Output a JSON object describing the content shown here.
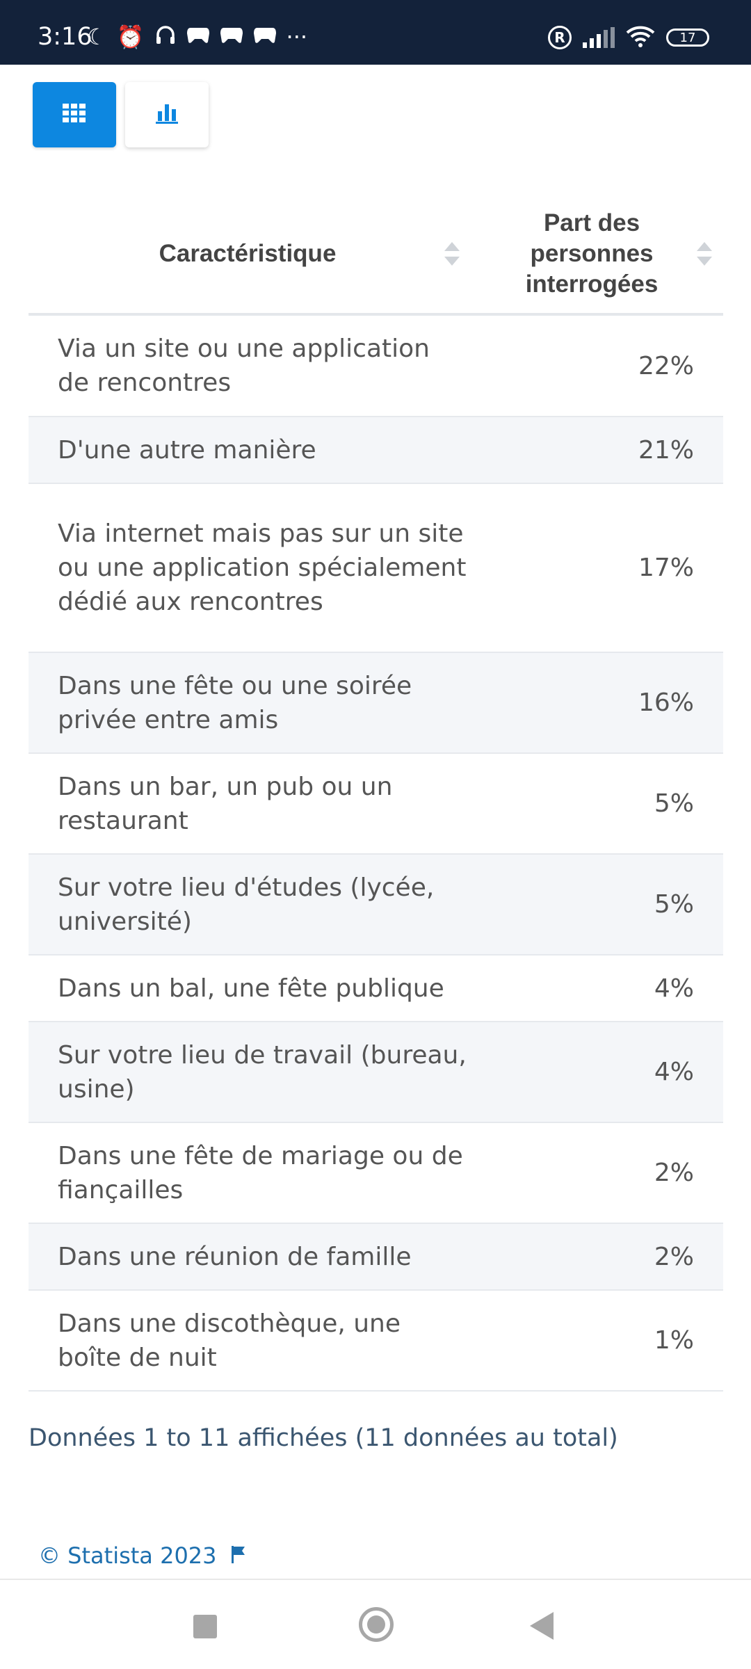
{
  "status_bar": {
    "time": "3:16",
    "more": "···",
    "battery": "17",
    "icons": [
      "moon-icon",
      "alarm-icon",
      "headphones-icon",
      "game-icon",
      "game-icon",
      "game-icon",
      "registered-icon",
      "signal-icon",
      "wifi-icon",
      "battery-icon"
    ]
  },
  "toolbar": {
    "table_view_icon": "grid-icon",
    "chart_view_icon": "bar-chart-icon",
    "accent_color": "#0d87e0"
  },
  "table": {
    "headers": {
      "characteristic": "Caractéristique",
      "share": "Part des personnes interrogées"
    },
    "rows": [
      {
        "label": "Via un site ou une application de rencontres",
        "value": "22%"
      },
      {
        "label": "D'une autre manière",
        "value": "21%"
      },
      {
        "label": "Via internet mais pas sur un site ou une application spécialement dédié aux rencontres",
        "value": "17%"
      },
      {
        "label": "Dans une fête ou une soirée privée entre amis",
        "value": "16%"
      },
      {
        "label": "Dans un bar, un pub ou un restaurant",
        "value": "5%"
      },
      {
        "label": "Sur votre lieu d'études (lycée, université)",
        "value": "5%"
      },
      {
        "label": "Dans un bal, une fête publique",
        "value": "4%"
      },
      {
        "label": "Sur votre lieu de travail (bureau, usine)",
        "value": "4%"
      },
      {
        "label": "Dans une fête de mariage ou de fiançailles",
        "value": "2%"
      },
      {
        "label": "Dans une réunion de famille",
        "value": "2%"
      },
      {
        "label": "Dans une discothèque, une boîte de nuit",
        "value": "1%"
      }
    ]
  },
  "footer": {
    "count_text": "Données 1 to 11 affichées (11 données au total)",
    "copyright": "© Statista 2023"
  }
}
